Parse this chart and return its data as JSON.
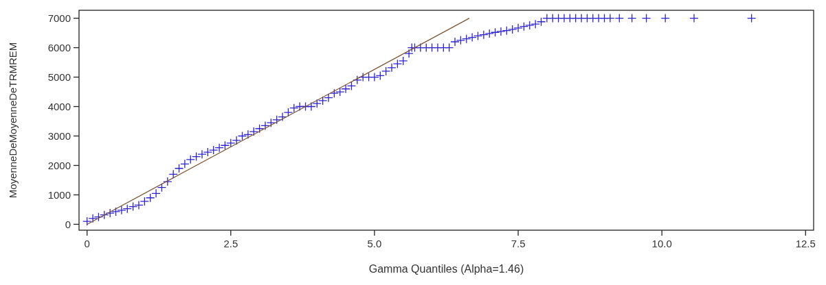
{
  "chart_data": {
    "type": "scatter",
    "xlabel": "Gamma Quantiles (Alpha=1.46)",
    "ylabel": "MoyenneDeMoyenneDeTRMREM",
    "xlim": [
      -0.14,
      12.64
    ],
    "ylim": [
      -200,
      7270
    ],
    "xticks": [
      0,
      2.5,
      {
        "value": 5,
        "label": "5.0"
      },
      7.5,
      {
        "value": 10,
        "label": "10.0"
      },
      12.5
    ],
    "yticks": [
      0,
      1000,
      2000,
      3000,
      4000,
      5000,
      6000,
      7000
    ],
    "grid": false,
    "series": [
      {
        "marker": "cross",
        "color": "#2c22d4",
        "x": [
          0,
          0.1,
          0.2,
          0.3,
          0.4,
          0.5,
          0.6,
          0.7,
          0.8,
          0.9,
          1.0,
          1.1,
          1.2,
          1.3,
          1.4,
          1.5,
          1.6,
          1.7,
          1.8,
          1.9,
          2.0,
          2.1,
          2.2,
          2.3,
          2.4,
          2.5,
          2.6,
          2.7,
          2.8,
          2.9,
          3.0,
          3.1,
          3.2,
          3.3,
          3.4,
          3.5,
          3.6,
          3.7,
          3.8,
          3.9,
          4.0,
          4.1,
          4.2,
          4.3,
          4.4,
          4.5,
          4.6,
          4.7,
          4.8,
          4.9,
          5.0,
          5.1,
          5.2,
          5.3,
          5.4,
          5.5,
          5.6,
          5.65,
          5.7,
          5.8,
          5.9,
          6.0,
          6.1,
          6.2,
          6.3,
          6.4,
          6.5,
          6.6,
          6.7,
          6.8,
          6.9,
          7.0,
          7.1,
          7.2,
          7.3,
          7.4,
          7.5,
          7.6,
          7.7,
          7.8,
          7.9,
          8.0,
          8.1,
          8.2,
          8.3,
          8.4,
          8.5,
          8.6,
          8.7,
          8.8,
          8.9,
          9.0,
          9.1,
          9.26,
          9.48,
          9.73,
          10.06,
          10.56,
          11.56
        ],
        "values": [
          100,
          200,
          250,
          320,
          380,
          430,
          480,
          530,
          600,
          650,
          780,
          900,
          1050,
          1250,
          1450,
          1700,
          1900,
          2050,
          2200,
          2300,
          2380,
          2450,
          2520,
          2600,
          2680,
          2760,
          2850,
          3000,
          3050,
          3150,
          3250,
          3350,
          3450,
          3550,
          3650,
          3800,
          3950,
          4000,
          4000,
          4000,
          4100,
          4200,
          4300,
          4450,
          4500,
          4600,
          4700,
          4900,
          5000,
          5000,
          5000,
          5050,
          5200,
          5320,
          5450,
          5550,
          5800,
          6000,
          6000,
          6000,
          6000,
          6000,
          6000,
          6000,
          6000,
          6200,
          6250,
          6300,
          6350,
          6400,
          6440,
          6480,
          6520,
          6550,
          6580,
          6620,
          6670,
          6720,
          6760,
          6800,
          6880,
          7000,
          7000,
          7000,
          7000,
          7000,
          7000,
          7000,
          7000,
          7000,
          7000,
          7000,
          7000,
          7000,
          7000,
          7000,
          7000,
          7000,
          7000
        ]
      },
      {
        "type": "line",
        "color": "#7a5230",
        "x": [
          0,
          6.65
        ],
        "values": [
          0,
          7000
        ]
      }
    ]
  }
}
